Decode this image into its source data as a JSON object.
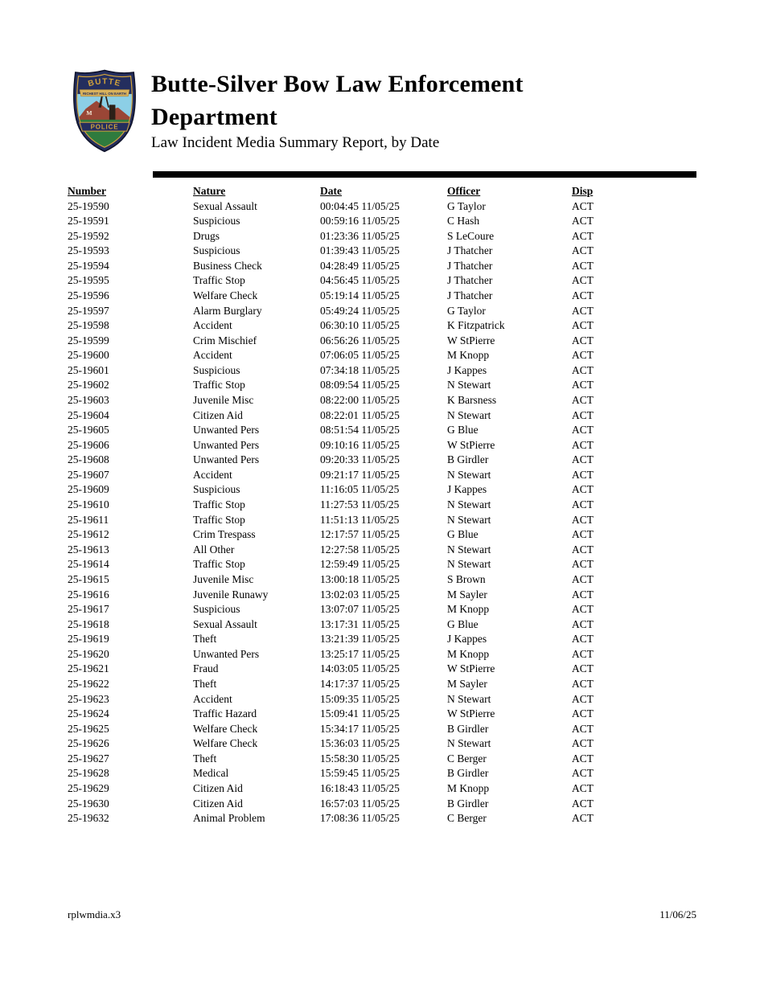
{
  "header": {
    "title_line1": "Butte-Silver Bow Law Enforcement",
    "title_line2": "Department",
    "subtitle": "Law Incident Media Summary Report, by Date",
    "logo": {
      "icon": "butte-police-badge-icon",
      "top_text": "BUTTE",
      "banner_text": "RICHEST HILL ON EARTH",
      "mountain_letter": "M",
      "bottom_text": "POLICE",
      "colors": {
        "badge-navy": "#242e5e",
        "badge-gold": "#d2a33c",
        "badge-banner": "#d9b25c",
        "badge-sky": "#8ccfe6",
        "badge-mountain": "#9a4636",
        "badge-green": "#2f7b3e"
      }
    }
  },
  "table": {
    "columns": [
      "Number",
      "Nature",
      "Date",
      "Officer",
      "Disp"
    ],
    "column_keys": [
      "number",
      "nature",
      "date",
      "officer",
      "disp"
    ],
    "rows": [
      [
        "25-19590",
        "Sexual Assault",
        "00:04:45 11/05/25",
        "G Taylor",
        "ACT"
      ],
      [
        "25-19591",
        "Suspicious",
        "00:59:16 11/05/25",
        "C Hash",
        "ACT"
      ],
      [
        "25-19592",
        "Drugs",
        "01:23:36 11/05/25",
        "S LeCoure",
        "ACT"
      ],
      [
        "25-19593",
        "Suspicious",
        "01:39:43 11/05/25",
        "J Thatcher",
        "ACT"
      ],
      [
        "25-19594",
        "Business Check",
        "04:28:49 11/05/25",
        "J Thatcher",
        "ACT"
      ],
      [
        "25-19595",
        "Traffic Stop",
        "04:56:45 11/05/25",
        "J Thatcher",
        "ACT"
      ],
      [
        "25-19596",
        "Welfare Check",
        "05:19:14 11/05/25",
        "J Thatcher",
        "ACT"
      ],
      [
        "25-19597",
        "Alarm Burglary",
        "05:49:24 11/05/25",
        "G Taylor",
        "ACT"
      ],
      [
        "25-19598",
        "Accident",
        "06:30:10 11/05/25",
        "K Fitzpatrick",
        "ACT"
      ],
      [
        "25-19599",
        "Crim Mischief",
        "06:56:26 11/05/25",
        "W StPierre",
        "ACT"
      ],
      [
        "25-19600",
        "Accident",
        "07:06:05 11/05/25",
        "M Knopp",
        "ACT"
      ],
      [
        "25-19601",
        "Suspicious",
        "07:34:18 11/05/25",
        "J Kappes",
        "ACT"
      ],
      [
        "25-19602",
        "Traffic Stop",
        "08:09:54 11/05/25",
        "N Stewart",
        "ACT"
      ],
      [
        "25-19603",
        "Juvenile Misc",
        "08:22:00 11/05/25",
        "K Barsness",
        "ACT"
      ],
      [
        "25-19604",
        "Citizen Aid",
        "08:22:01 11/05/25",
        "N Stewart",
        "ACT"
      ],
      [
        "25-19605",
        "Unwanted Pers",
        "08:51:54 11/05/25",
        "G Blue",
        "ACT"
      ],
      [
        "25-19606",
        "Unwanted Pers",
        "09:10:16 11/05/25",
        "W StPierre",
        "ACT"
      ],
      [
        "25-19608",
        "Unwanted Pers",
        "09:20:33 11/05/25",
        "B Girdler",
        "ACT"
      ],
      [
        "25-19607",
        "Accident",
        "09:21:17 11/05/25",
        "N Stewart",
        "ACT"
      ],
      [
        "25-19609",
        "Suspicious",
        "11:16:05 11/05/25",
        "J Kappes",
        "ACT"
      ],
      [
        "25-19610",
        "Traffic Stop",
        "11:27:53 11/05/25",
        "N Stewart",
        "ACT"
      ],
      [
        "25-19611",
        "Traffic Stop",
        "11:51:13 11/05/25",
        "N Stewart",
        "ACT"
      ],
      [
        "25-19612",
        "Crim Trespass",
        "12:17:57 11/05/25",
        "G Blue",
        "ACT"
      ],
      [
        "25-19613",
        "All Other",
        "12:27:58 11/05/25",
        "N Stewart",
        "ACT"
      ],
      [
        "25-19614",
        "Traffic Stop",
        "12:59:49 11/05/25",
        "N Stewart",
        "ACT"
      ],
      [
        "25-19615",
        "Juvenile Misc",
        "13:00:18 11/05/25",
        "S Brown",
        "ACT"
      ],
      [
        "25-19616",
        "Juvenile Runawy",
        "13:02:03 11/05/25",
        "M Sayler",
        "ACT"
      ],
      [
        "25-19617",
        "Suspicious",
        "13:07:07 11/05/25",
        "M Knopp",
        "ACT"
      ],
      [
        "25-19618",
        "Sexual Assault",
        "13:17:31 11/05/25",
        "G Blue",
        "ACT"
      ],
      [
        "25-19619",
        "Theft",
        "13:21:39 11/05/25",
        "J Kappes",
        "ACT"
      ],
      [
        "25-19620",
        "Unwanted Pers",
        "13:25:17 11/05/25",
        "M Knopp",
        "ACT"
      ],
      [
        "25-19621",
        "Fraud",
        "14:03:05 11/05/25",
        "W StPierre",
        "ACT"
      ],
      [
        "25-19622",
        "Theft",
        "14:17:37 11/05/25",
        "M Sayler",
        "ACT"
      ],
      [
        "25-19623",
        "Accident",
        "15:09:35 11/05/25",
        "N Stewart",
        "ACT"
      ],
      [
        "25-19624",
        "Traffic Hazard",
        "15:09:41 11/05/25",
        "W StPierre",
        "ACT"
      ],
      [
        "25-19625",
        "Welfare Check",
        "15:34:17 11/05/25",
        "B Girdler",
        "ACT"
      ],
      [
        "25-19626",
        "Welfare Check",
        "15:36:03 11/05/25",
        "N Stewart",
        "ACT"
      ],
      [
        "25-19627",
        "Theft",
        "15:58:30 11/05/25",
        "C Berger",
        "ACT"
      ],
      [
        "25-19628",
        "Medical",
        "15:59:45 11/05/25",
        "B Girdler",
        "ACT"
      ],
      [
        "25-19629",
        "Citizen Aid",
        "16:18:43 11/05/25",
        "M Knopp",
        "ACT"
      ],
      [
        "25-19630",
        "Citizen Aid",
        "16:57:03 11/05/25",
        "B Girdler",
        "ACT"
      ],
      [
        "25-19632",
        "Animal Problem",
        "17:08:36 11/05/25",
        "C Berger",
        "ACT"
      ]
    ]
  },
  "footer": {
    "left": "rplwmdia.x3",
    "right": "11/06/25"
  }
}
